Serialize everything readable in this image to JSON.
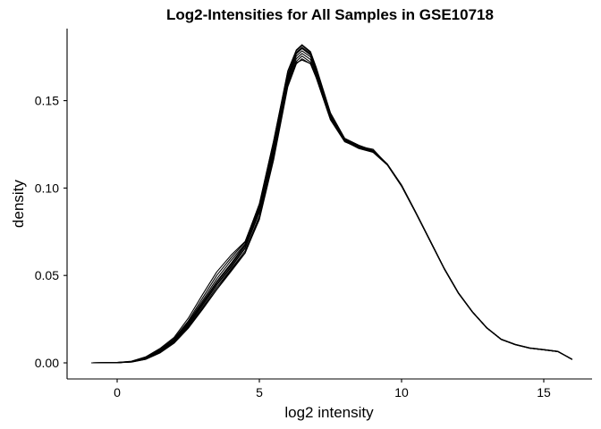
{
  "chart_data": {
    "type": "line",
    "title": "Log2-Intensities for All Samples in GSE10718",
    "xlabel": "log2 intensity",
    "ylabel": "density",
    "xlim": [
      -1,
      16
    ],
    "ylim": [
      0,
      0.185
    ],
    "xticks": [
      0,
      5,
      10,
      15
    ],
    "xtick_labels": [
      "0",
      "5",
      "10",
      "15"
    ],
    "yticks": [
      0.0,
      0.05,
      0.1,
      0.15
    ],
    "ytick_labels": [
      "0.00",
      "0.05",
      "0.10",
      "0.15"
    ],
    "grid": false,
    "legend": "none",
    "line_color": "#000000",
    "x": [
      -0.9,
      0,
      0.5,
      1,
      1.5,
      2,
      2.5,
      3,
      3.5,
      4,
      4.5,
      5,
      5.5,
      6,
      6.3,
      6.5,
      6.8,
      7,
      7.5,
      8,
      8.5,
      9,
      9.5,
      10,
      10.5,
      11,
      11.5,
      12,
      12.5,
      13,
      13.5,
      14,
      14.5,
      15,
      15.5,
      16
    ],
    "series": [
      {
        "values": [
          0,
          0.0001,
          0.0006,
          0.0025,
          0.0065,
          0.0125,
          0.022,
          0.034,
          0.046,
          0.056,
          0.067,
          0.088,
          0.122,
          0.163,
          0.177,
          0.18,
          0.176,
          0.167,
          0.141,
          0.1275,
          0.124,
          0.121,
          0.1135,
          0.1015,
          0.086,
          0.07,
          0.054,
          0.04,
          0.029,
          0.02,
          0.0135,
          0.0105,
          0.0085,
          0.0075,
          0.0065,
          0.002
        ]
      },
      {
        "values": [
          0,
          0.0001,
          0.0005,
          0.0021,
          0.0058,
          0.0115,
          0.02,
          0.031,
          0.042,
          0.053,
          0.063,
          0.082,
          0.116,
          0.158,
          0.171,
          0.174,
          0.171,
          0.163,
          0.139,
          0.1265,
          0.123,
          0.1205,
          0.1132,
          0.101,
          0.0858,
          0.0698,
          0.0538,
          0.0398,
          0.0289,
          0.0199,
          0.0135,
          0.0105,
          0.0085,
          0.0075,
          0.0065,
          0.002
        ]
      },
      {
        "values": [
          0,
          0.0002,
          0.0008,
          0.0031,
          0.0076,
          0.0138,
          0.024,
          0.037,
          0.05,
          0.06,
          0.069,
          0.091,
          0.127,
          0.167,
          0.179,
          0.182,
          0.178,
          0.169,
          0.143,
          0.1285,
          0.1245,
          0.1215,
          0.1138,
          0.1018,
          0.0862,
          0.0702,
          0.0541,
          0.0401,
          0.0291,
          0.0201,
          0.0136,
          0.0106,
          0.0086,
          0.0076,
          0.0066,
          0.002
        ]
      },
      {
        "values": [
          0,
          0.0001,
          0.0006,
          0.0023,
          0.0062,
          0.0121,
          0.0212,
          0.0328,
          0.0445,
          0.0545,
          0.0655,
          0.086,
          0.119,
          0.161,
          0.174,
          0.177,
          0.1735,
          0.165,
          0.14,
          0.127,
          0.1232,
          0.1208,
          0.1134,
          0.1013,
          0.0859,
          0.0699,
          0.0539,
          0.0399,
          0.029,
          0.02,
          0.0135,
          0.0105,
          0.0085,
          0.0075,
          0.0065,
          0.002
        ]
      },
      {
        "values": [
          0,
          0.0002,
          0.0007,
          0.0028,
          0.0071,
          0.0132,
          0.0232,
          0.0355,
          0.048,
          0.0585,
          0.068,
          0.0895,
          0.1245,
          0.165,
          0.1775,
          0.1805,
          0.1768,
          0.168,
          0.142,
          0.128,
          0.1242,
          0.1212,
          0.1136,
          0.1016,
          0.0861,
          0.0701,
          0.054,
          0.04,
          0.029,
          0.02,
          0.0135,
          0.0105,
          0.0085,
          0.0075,
          0.0065,
          0.002
        ]
      },
      {
        "values": [
          0,
          0.0001,
          0.0006,
          0.0024,
          0.0064,
          0.0123,
          0.0216,
          0.0333,
          0.045,
          0.055,
          0.066,
          0.087,
          0.1205,
          0.162,
          0.1755,
          0.1785,
          0.175,
          0.166,
          0.1405,
          0.1272,
          0.1236,
          0.1209,
          0.1134,
          0.1014,
          0.0859,
          0.07,
          0.0539,
          0.0399,
          0.029,
          0.02,
          0.0135,
          0.0105,
          0.0085,
          0.0075,
          0.0065,
          0.002
        ]
      },
      {
        "values": [
          0,
          0.0002,
          0.0009,
          0.0034,
          0.0082,
          0.0145,
          0.0255,
          0.039,
          0.052,
          0.0615,
          0.0695,
          0.0905,
          0.1265,
          0.1665,
          0.1785,
          0.1815,
          0.1775,
          0.1685,
          0.1428,
          0.1282,
          0.1238,
          0.121,
          0.1135,
          0.1015,
          0.086,
          0.07,
          0.054,
          0.04,
          0.029,
          0.02,
          0.0135,
          0.0105,
          0.0085,
          0.0075,
          0.0065,
          0.002
        ]
      },
      {
        "values": [
          0,
          0.0001,
          0.0005,
          0.0022,
          0.006,
          0.0118,
          0.0205,
          0.0318,
          0.0432,
          0.0535,
          0.064,
          0.084,
          0.1178,
          0.1598,
          0.1725,
          0.1755,
          0.172,
          0.1638,
          0.1395,
          0.1268,
          0.1226,
          0.1204,
          0.1132,
          0.1012,
          0.0858,
          0.0698,
          0.0538,
          0.0398,
          0.0289,
          0.0199,
          0.0134,
          0.0104,
          0.0084,
          0.0074,
          0.0064,
          0.002
        ]
      },
      {
        "values": [
          0,
          0.0001,
          0.0006,
          0.0026,
          0.0067,
          0.0128,
          0.0225,
          0.0345,
          0.0465,
          0.0568,
          0.0675,
          0.0885,
          0.123,
          0.164,
          0.1768,
          0.1798,
          0.1762,
          0.1672,
          0.1415,
          0.1276,
          0.1238,
          0.1211,
          0.1135,
          0.1015,
          0.086,
          0.07,
          0.054,
          0.04,
          0.029,
          0.02,
          0.0135,
          0.0105,
          0.0085,
          0.0075,
          0.0065,
          0.002
        ]
      },
      {
        "values": [
          0,
          0.0001,
          0.0004,
          0.002,
          0.0056,
          0.0112,
          0.0198,
          0.0305,
          0.0418,
          0.0522,
          0.0628,
          0.0828,
          0.1172,
          0.1592,
          0.1718,
          0.1732,
          0.1712,
          0.1632,
          0.1392,
          0.1266,
          0.1238,
          0.1222,
          0.1134,
          0.1012,
          0.0858,
          0.0698,
          0.0538,
          0.0398,
          0.0289,
          0.0199,
          0.0134,
          0.0104,
          0.0084,
          0.0074,
          0.0064,
          0.002
        ]
      }
    ]
  }
}
